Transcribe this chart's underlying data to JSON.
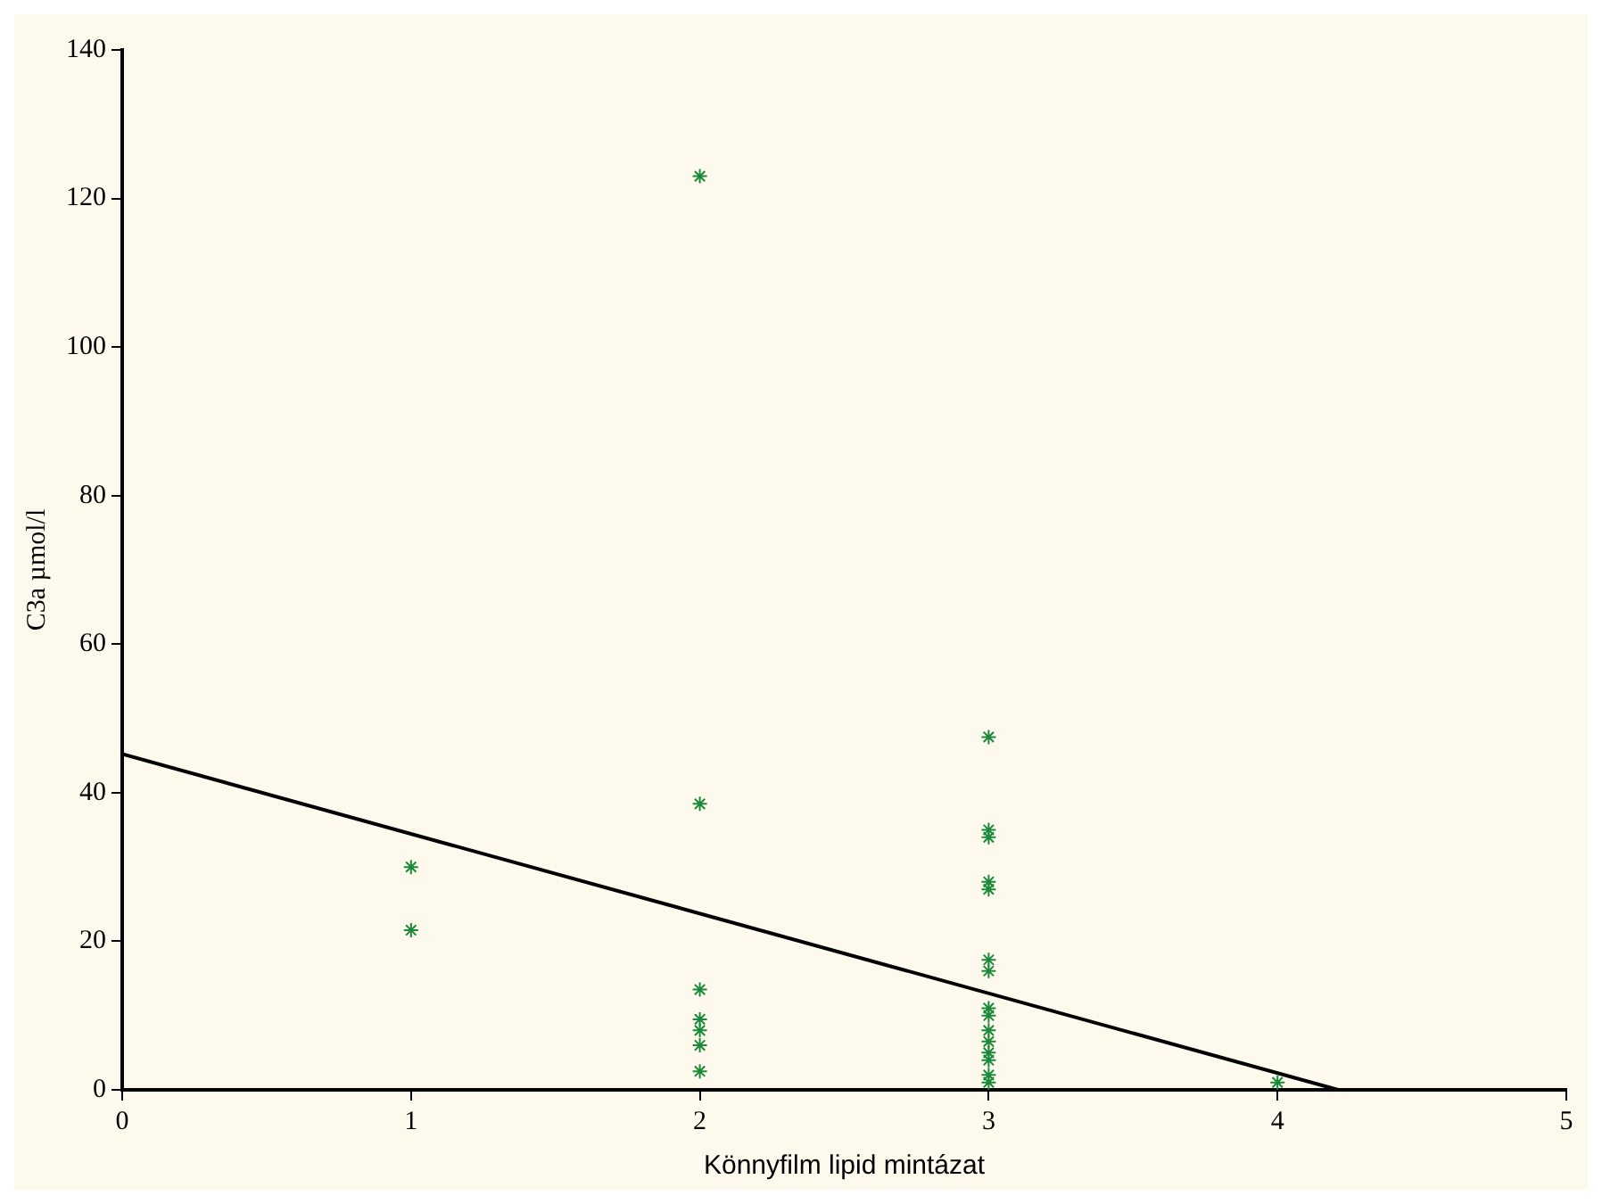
{
  "chart_data": {
    "type": "scatter",
    "xlabel": "Könnyfilm lipid mintázat",
    "ylabel": "C3a µmol/l",
    "xlim": [
      0,
      5
    ],
    "xticks": [
      0,
      1,
      2,
      3,
      4,
      5
    ],
    "ylim": [
      0,
      140
    ],
    "yticks": [
      0,
      20,
      40,
      60,
      80,
      100,
      120,
      140
    ],
    "grid": false,
    "legend": false,
    "marker": "cross",
    "series": [
      {
        "type": "scatter",
        "color": "#1a8a3a",
        "x": [
          1,
          1,
          2,
          2,
          2,
          2,
          2,
          2,
          2,
          3,
          3,
          3,
          3,
          3,
          3,
          3,
          3,
          3,
          3,
          3,
          3,
          3,
          3,
          3,
          4
        ],
        "values": [
          30,
          21.5,
          123,
          38.5,
          13.5,
          9.5,
          8,
          6,
          2.5,
          47.5,
          35,
          34,
          28,
          27,
          17.5,
          16,
          11,
          10,
          8,
          6.5,
          5,
          4,
          2,
          1,
          1
        ]
      },
      {
        "type": "line",
        "color": "#000000",
        "x": [
          0,
          4.21
        ],
        "values": [
          45.2,
          0
        ],
        "marker": "none",
        "line_style": "solid"
      }
    ]
  }
}
